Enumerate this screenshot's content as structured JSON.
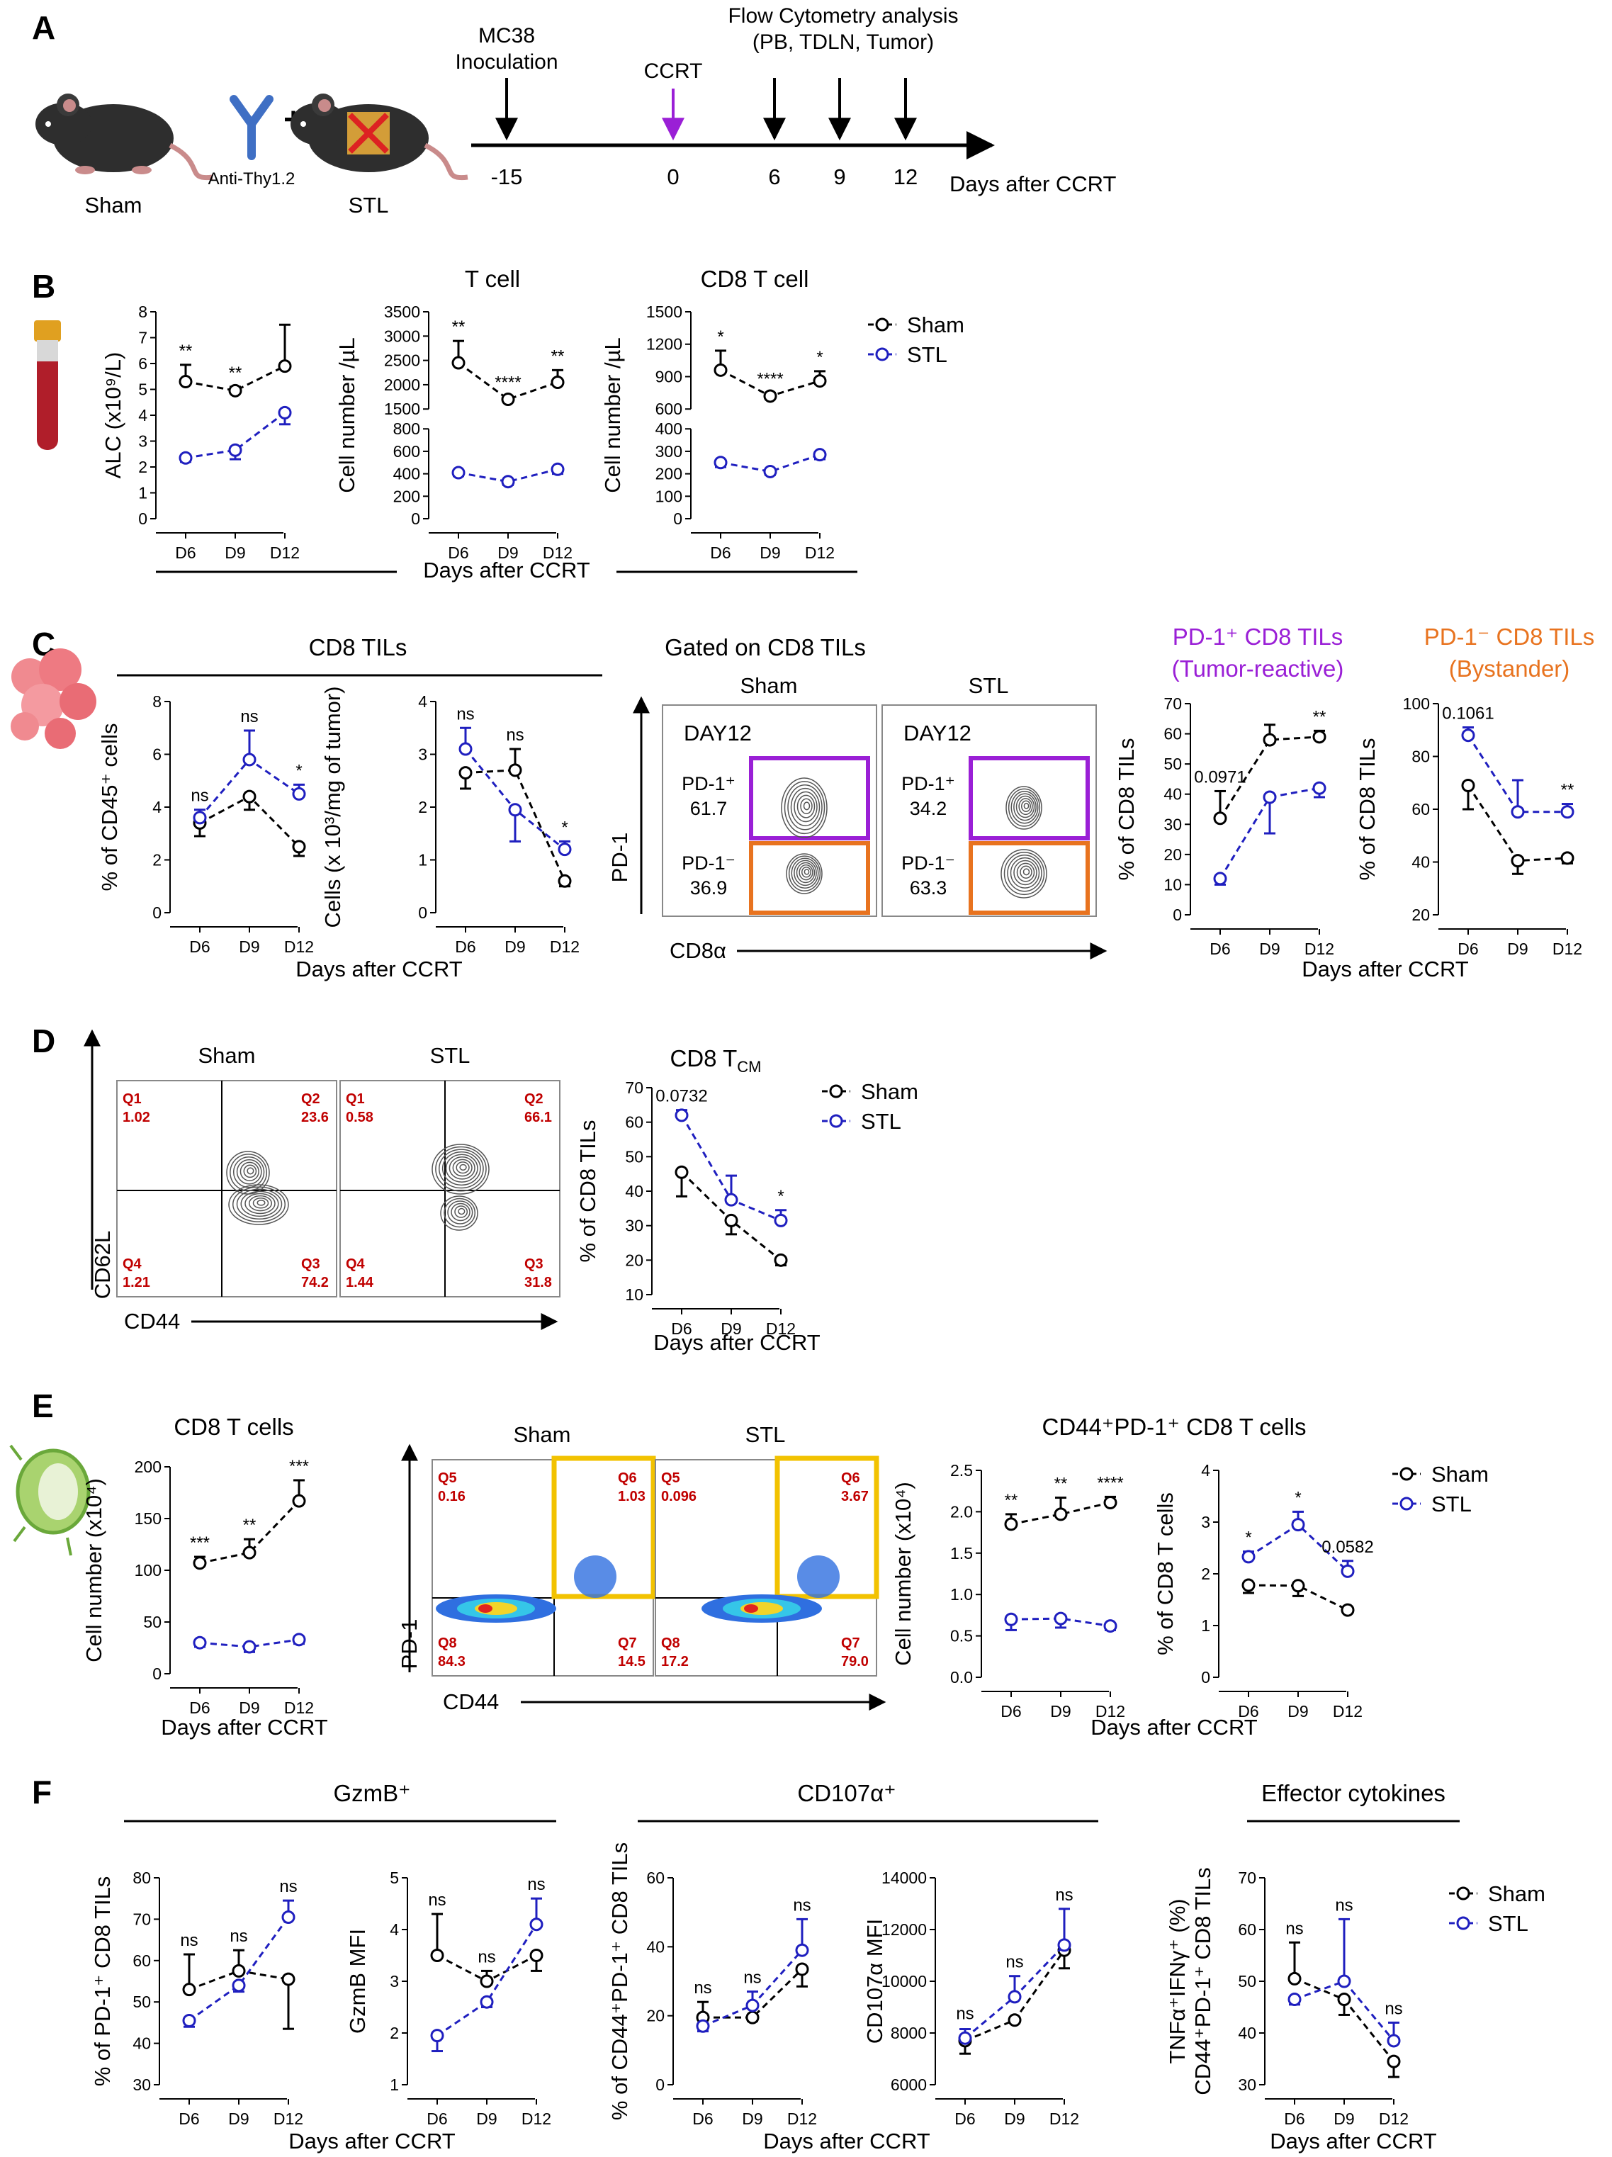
{
  "colors": {
    "sham": "#000000",
    "stl": "#1f1fbf",
    "purple": "#9a1fd6",
    "orange": "#e8731f",
    "gold": "#f2c200",
    "red": "#c00000"
  },
  "panels": [
    "A",
    "B",
    "C",
    "D",
    "E",
    "F"
  ],
  "A": {
    "mice": [
      "Sham",
      "STL"
    ],
    "antibody": "Anti-Thy1.2",
    "plus": "+",
    "events": {
      "inoculation": "MC38\nInoculation",
      "ccrt": "CCRT",
      "flow": "Flow Cytometry analysis\n(PB, TDLN, Tumor)"
    },
    "timeline_ticks": [
      "-15",
      "0",
      "6",
      "9",
      "12"
    ],
    "axis_label": "Days after CCRT",
    "icons": [
      "mouse-icon",
      "antibody-icon",
      "mouse-icon"
    ]
  },
  "common": {
    "xlabel": "Days after CCRT",
    "x": [
      "D6",
      "D9",
      "D12"
    ],
    "legend": [
      "Sham",
      "STL"
    ]
  },
  "C": {
    "group_title": "CD8 TILs",
    "flow_title": "Gated on CD8 TILs",
    "flow_cols": [
      "Sham",
      "STL"
    ],
    "day": "DAY12",
    "gates": {
      "pos": "PD-1⁺",
      "neg": "PD-1⁻"
    },
    "values": {
      "sham_pos": "61.7",
      "sham_neg": "36.9",
      "stl_pos": "34.2",
      "stl_neg": "63.3"
    },
    "y_axis": "PD-1",
    "x_axis": "CD8α",
    "title_pos": "PD-1⁺ CD8 TILs",
    "sub_pos": "(Tumor-reactive)",
    "title_neg": "PD-1⁻ CD8 TILs",
    "sub_neg": "(Bystander)"
  },
  "D": {
    "flow_cols": [
      "Sham",
      "STL"
    ],
    "quads": [
      {
        "Q1": "1.02",
        "Q2": "23.6",
        "Q3": "74.2",
        "Q4": "1.21"
      },
      {
        "Q1": "0.58",
        "Q2": "66.1",
        "Q3": "31.8",
        "Q4": "1.44"
      }
    ],
    "y_axis": "CD62L",
    "x_axis": "CD44"
  },
  "E": {
    "flow_cols": [
      "Sham",
      "STL"
    ],
    "quads": [
      {
        "Q5": "0.16",
        "Q6": "1.03",
        "Q7": "14.5",
        "Q8": "84.3"
      },
      {
        "Q5": "0.096",
        "Q6": "3.67",
        "Q7": "79.0",
        "Q8": "17.2"
      }
    ],
    "y_axis": "PD-1",
    "x_axis": "CD44",
    "group_title": "CD44⁺PD-1⁺ CD8 T cells"
  },
  "F": {
    "group_titles": [
      "GzmB⁺",
      "CD107α⁺",
      "Effector cytokines"
    ]
  },
  "chart_data": [
    {
      "id": "B-ALC",
      "panel": "B",
      "type": "line",
      "title": "",
      "x": [
        "D6",
        "D9",
        "D12"
      ],
      "xlabel": "",
      "ylabel": "ALC (x10⁹/L)",
      "ylim": [
        0,
        8
      ],
      "yticks": [
        "0",
        "1",
        "2",
        "3",
        "4",
        "5",
        "6",
        "7",
        "8"
      ],
      "series": [
        {
          "name": "Sham",
          "values": [
            5.3,
            4.95,
            5.9
          ],
          "err": [
            0.65,
            0.15,
            1.6
          ]
        },
        {
          "name": "STL",
          "values": [
            2.35,
            2.65,
            4.1
          ],
          "err": [
            0.15,
            0.35,
            0.45
          ]
        }
      ],
      "sig": [
        "**",
        "**",
        ""
      ]
    },
    {
      "id": "B-T",
      "panel": "B",
      "type": "line",
      "title": "T cell",
      "x": [
        "D6",
        "D9",
        "D12"
      ],
      "xlabel": "",
      "ylabel": "Cell number /µL",
      "broken_axis": true,
      "ylim_lower": [
        0,
        800
      ],
      "ylim_upper": [
        1500,
        3500
      ],
      "yticks": [
        "0",
        "200",
        "400",
        "600",
        "800",
        "1500",
        "2000",
        "2500",
        "3000",
        "3500"
      ],
      "series": [
        {
          "name": "Sham",
          "values": [
            2450,
            1700,
            2050
          ],
          "err": [
            450,
            60,
            250
          ]
        },
        {
          "name": "STL",
          "values": [
            410,
            330,
            440
          ],
          "err": [
            30,
            30,
            40
          ]
        }
      ],
      "sig": [
        "**",
        "****",
        "**"
      ]
    },
    {
      "id": "B-CD8",
      "panel": "B",
      "type": "line",
      "title": "CD8 T cell",
      "x": [
        "D6",
        "D9",
        "D12"
      ],
      "xlabel": "",
      "ylabel": "Cell number /µL",
      "broken_axis": true,
      "ylim_lower": [
        0,
        400
      ],
      "ylim_upper": [
        600,
        1500
      ],
      "yticks": [
        "0",
        "100",
        "200",
        "300",
        "400",
        "600",
        "900",
        "1200",
        "1500"
      ],
      "series": [
        {
          "name": "Sham",
          "values": [
            960,
            720,
            860
          ],
          "err": [
            180,
            30,
            90
          ]
        },
        {
          "name": "STL",
          "values": [
            250,
            210,
            285
          ],
          "err": [
            20,
            15,
            20
          ]
        }
      ],
      "sig": [
        "*",
        "****",
        "*"
      ]
    },
    {
      "id": "C-pct",
      "panel": "C",
      "type": "line",
      "title": "",
      "x": [
        "D6",
        "D9",
        "D12"
      ],
      "xlabel": "",
      "ylabel": "% of CD45⁺ cells",
      "ylim": [
        0,
        8
      ],
      "yticks": [
        "0",
        "2",
        "4",
        "6",
        "8"
      ],
      "series": [
        {
          "name": "Sham",
          "values": [
            3.4,
            4.4,
            2.5
          ],
          "err": [
            0.5,
            0.5,
            0.35
          ]
        },
        {
          "name": "STL",
          "values": [
            3.6,
            5.8,
            4.5
          ],
          "err": [
            0.3,
            1.1,
            0.35
          ]
        }
      ],
      "sig": [
        "ns",
        "ns",
        "*"
      ]
    },
    {
      "id": "C-cells",
      "panel": "C",
      "type": "line",
      "title": "",
      "x": [
        "D6",
        "D9",
        "D12"
      ],
      "xlabel": "",
      "ylabel": "Cells (x 10³/mg of tumor)",
      "ylim": [
        0,
        4
      ],
      "yticks": [
        "0",
        "1",
        "2",
        "3",
        "4"
      ],
      "series": [
        {
          "name": "Sham",
          "values": [
            2.65,
            2.7,
            0.6
          ],
          "err": [
            0.3,
            0.4,
            0.1
          ]
        },
        {
          "name": "STL",
          "values": [
            3.1,
            1.95,
            1.2
          ],
          "err": [
            0.4,
            0.6,
            0.15
          ]
        }
      ],
      "sig": [
        "ns",
        "ns",
        "*"
      ]
    },
    {
      "id": "C-pos",
      "panel": "C",
      "type": "line",
      "title": "",
      "x": [
        "D6",
        "D9",
        "D12"
      ],
      "xlabel": "",
      "ylabel": "% of CD8 TILs",
      "ylim": [
        0,
        70
      ],
      "yticks": [
        "0",
        "10",
        "20",
        "30",
        "40",
        "50",
        "60",
        "70"
      ],
      "series": [
        {
          "name": "Sham",
          "values": [
            32,
            58,
            59
          ],
          "err": [
            9,
            5,
            2
          ]
        },
        {
          "name": "STL",
          "values": [
            12,
            39,
            42
          ],
          "err": [
            2,
            12,
            3
          ]
        }
      ],
      "sig": [
        "0.0971",
        "",
        "**"
      ]
    },
    {
      "id": "C-neg",
      "panel": "C",
      "type": "line",
      "title": "",
      "x": [
        "D6",
        "D9",
        "D12"
      ],
      "xlabel": "",
      "ylabel": "% of CD8 TILs",
      "ylim": [
        20,
        100
      ],
      "yticks": [
        "20",
        "40",
        "60",
        "80",
        "100"
      ],
      "series": [
        {
          "name": "Sham",
          "values": [
            69,
            40.5,
            41.5
          ],
          "err": [
            9,
            5,
            2
          ]
        },
        {
          "name": "STL",
          "values": [
            88,
            59,
            59
          ],
          "err": [
            3,
            12,
            3
          ]
        }
      ],
      "sig": [
        "0.1061",
        "",
        "**"
      ]
    },
    {
      "id": "D-tcm",
      "panel": "D",
      "type": "line",
      "title": "CD8 T",
      "title_sub": "CM",
      "x": [
        "D6",
        "D9",
        "D12"
      ],
      "xlabel": "",
      "ylabel": "% of CD8 TILs",
      "ylim": [
        10,
        70
      ],
      "yticks": [
        "10",
        "20",
        "30",
        "40",
        "50",
        "60",
        "70"
      ],
      "series": [
        {
          "name": "Sham",
          "values": [
            45.5,
            31.5,
            20
          ],
          "err": [
            7,
            4,
            1.5
          ]
        },
        {
          "name": "STL",
          "values": [
            62,
            37.5,
            31.5
          ],
          "err": [
            1.5,
            7,
            3
          ]
        }
      ],
      "sig": [
        "0.0732",
        "",
        "*"
      ]
    },
    {
      "id": "E-count",
      "panel": "E",
      "type": "line",
      "title": "CD8 T cells",
      "x": [
        "D6",
        "D9",
        "D12"
      ],
      "xlabel": "",
      "ylabel": "Cell number (x10⁴)",
      "ylim": [
        0,
        200
      ],
      "yticks": [
        "0",
        "50",
        "100",
        "150",
        "200"
      ],
      "series": [
        {
          "name": "Sham",
          "values": [
            107,
            117,
            167
          ],
          "err": [
            6,
            13,
            20
          ]
        },
        {
          "name": "STL",
          "values": [
            30,
            26,
            33
          ],
          "err": [
            4,
            5,
            4
          ]
        }
      ],
      "sig": [
        "***",
        "**",
        "***"
      ]
    },
    {
      "id": "E-dp-count",
      "panel": "E",
      "type": "line",
      "title": "",
      "x": [
        "D6",
        "D9",
        "D12"
      ],
      "xlabel": "",
      "ylabel": "Cell number (x10⁴)",
      "ylim": [
        0.0,
        2.5
      ],
      "yticks": [
        "0.0",
        "0.5",
        "1.0",
        "1.5",
        "2.0",
        "2.5"
      ],
      "series": [
        {
          "name": "Sham",
          "values": [
            1.85,
            1.97,
            2.11
          ],
          "err": [
            0.12,
            0.2,
            0.07
          ]
        },
        {
          "name": "STL",
          "values": [
            0.7,
            0.71,
            0.62
          ],
          "err": [
            0.13,
            0.11,
            0.05
          ]
        }
      ],
      "sig": [
        "**",
        "**",
        "****"
      ]
    },
    {
      "id": "E-dp-pct",
      "panel": "E",
      "type": "line",
      "title": "",
      "x": [
        "D6",
        "D9",
        "D12"
      ],
      "xlabel": "",
      "ylabel": "% of CD8 T cells",
      "ylim": [
        0,
        4
      ],
      "yticks": [
        "0",
        "1",
        "2",
        "3",
        "4"
      ],
      "series": [
        {
          "name": "Sham",
          "values": [
            1.78,
            1.77,
            1.3
          ],
          "err": [
            0.15,
            0.2,
            0.05
          ]
        },
        {
          "name": "STL",
          "values": [
            2.33,
            2.95,
            2.05
          ],
          "err": [
            0.1,
            0.25,
            0.2
          ]
        }
      ],
      "sig": [
        "*",
        "*",
        "0.0582"
      ]
    },
    {
      "id": "F-gzmb-pct",
      "panel": "F",
      "type": "line",
      "title": "",
      "x": [
        "D6",
        "D9",
        "D12"
      ],
      "xlabel": "",
      "ylabel": "% of PD-1⁺ CD8 TILs",
      "ylim": [
        30,
        80
      ],
      "yticks": [
        "30",
        "40",
        "50",
        "60",
        "70",
        "80"
      ],
      "series": [
        {
          "name": "Sham",
          "values": [
            53,
            57.5,
            55.5
          ],
          "err": [
            8.5,
            5,
            12
          ]
        },
        {
          "name": "STL",
          "values": [
            45.5,
            54,
            70.5
          ],
          "err": [
            1.5,
            1.5,
            4
          ]
        }
      ],
      "sig": [
        "ns",
        "ns",
        "ns"
      ]
    },
    {
      "id": "F-gzmb-mfi",
      "panel": "F",
      "type": "line",
      "title": "",
      "x": [
        "D6",
        "D9",
        "D12"
      ],
      "xlabel": "",
      "ylabel": "GzmB MFI",
      "ylim": [
        1,
        5
      ],
      "yticks": [
        "1",
        "2",
        "3",
        "4",
        "5"
      ],
      "series": [
        {
          "name": "Sham",
          "values": [
            3.5,
            3.0,
            3.5
          ],
          "err": [
            0.8,
            0.2,
            0.3
          ]
        },
        {
          "name": "STL",
          "values": [
            1.95,
            2.6,
            4.1
          ],
          "err": [
            0.3,
            0.1,
            0.5
          ]
        }
      ],
      "sig": [
        "ns",
        "ns",
        "ns"
      ]
    },
    {
      "id": "F-cd107-pct",
      "panel": "F",
      "type": "line",
      "title": "",
      "x": [
        "D6",
        "D9",
        "D12"
      ],
      "xlabel": "",
      "ylabel": "% of CD44⁺PD-1⁺ CD8 TILs",
      "ylim": [
        0,
        60
      ],
      "yticks": [
        "0",
        "20",
        "40",
        "60"
      ],
      "series": [
        {
          "name": "Sham",
          "values": [
            19.5,
            19.5,
            33.5
          ],
          "err": [
            4.5,
            1,
            5
          ]
        },
        {
          "name": "STL",
          "values": [
            17,
            23,
            39
          ],
          "err": [
            1.5,
            4,
            9
          ]
        }
      ],
      "sig": [
        "ns",
        "ns",
        "ns"
      ]
    },
    {
      "id": "F-cd107-mfi",
      "panel": "F",
      "type": "line",
      "title": "",
      "x": [
        "D6",
        "D9",
        "D12"
      ],
      "xlabel": "",
      "ylabel": "CD107α MFI",
      "ylim": [
        6000,
        14000
      ],
      "yticks": [
        "6000",
        "8000",
        "10000",
        "12000",
        "14000"
      ],
      "series": [
        {
          "name": "Sham",
          "values": [
            7700,
            8500,
            11200
          ],
          "err": [
            500,
            100,
            700
          ]
        },
        {
          "name": "STL",
          "values": [
            7800,
            9400,
            11400
          ],
          "err": [
            350,
            800,
            1400
          ]
        }
      ],
      "sig": [
        "ns",
        "ns",
        "ns"
      ]
    },
    {
      "id": "F-cyto",
      "panel": "F",
      "type": "line",
      "title": "",
      "x": [
        "D6",
        "D9",
        "D12"
      ],
      "xlabel": "",
      "ylabel": "TNFα⁺IFNγ⁺ (%) / CD44⁺PD-1⁺ CD8 TILs",
      "ylim": [
        30,
        70
      ],
      "yticks": [
        "30",
        "40",
        "50",
        "60",
        "70"
      ],
      "series": [
        {
          "name": "Sham",
          "values": [
            50.5,
            46.5,
            34.5
          ],
          "err": [
            7,
            3,
            3
          ]
        },
        {
          "name": "STL",
          "values": [
            46.5,
            50,
            38.5
          ],
          "err": [
            1,
            12,
            3.5
          ]
        }
      ],
      "sig": [
        "ns",
        "ns",
        "ns"
      ]
    }
  ]
}
